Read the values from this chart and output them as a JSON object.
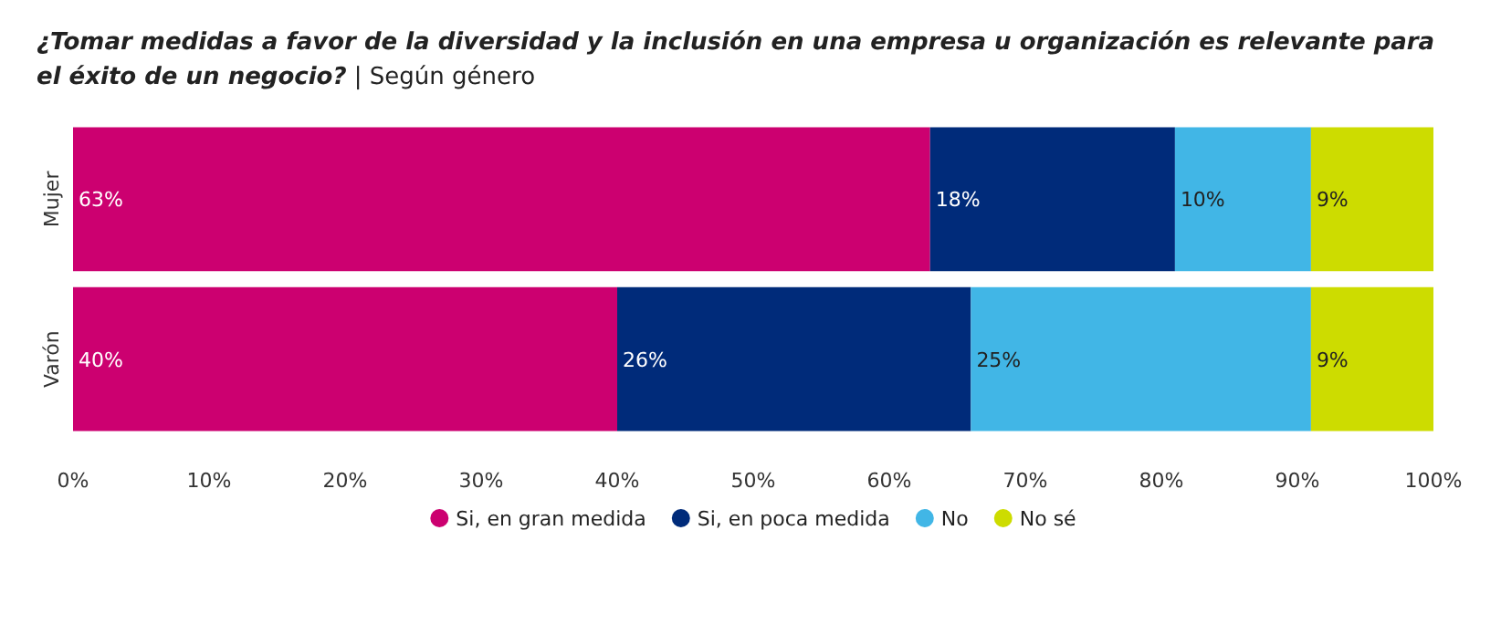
{
  "chart_data": {
    "type": "bar",
    "orientation": "horizontal",
    "stacked": true,
    "title": "¿Tomar medidas a favor de la diversidad y la inclusión en una empresa u organización es relevante para el éxito de un negocio?",
    "subtitle": "| Según género",
    "categories": [
      "Mujer",
      "Varón"
    ],
    "series": [
      {
        "name": "Si, en gran medida",
        "color": "#cc0070",
        "values": [
          63,
          40
        ]
      },
      {
        "name": "Si, en poca medida",
        "color": "#002b7a",
        "values": [
          18,
          26
        ]
      },
      {
        "name": "No",
        "color": "#41b6e6",
        "values": [
          10,
          25
        ]
      },
      {
        "name": "No sé",
        "color": "#cddc00",
        "values": [
          9,
          9
        ]
      }
    ],
    "xlim": [
      0,
      100
    ],
    "xticks": [
      {
        "value": 0,
        "label": "0%"
      },
      {
        "value": 10,
        "label": "10%"
      },
      {
        "value": 20,
        "label": "20%"
      },
      {
        "value": 30,
        "label": "30%"
      },
      {
        "value": 40,
        "label": "40%"
      },
      {
        "value": 50,
        "label": "50%"
      },
      {
        "value": 60,
        "label": "60%"
      },
      {
        "value": 70,
        "label": "70%"
      },
      {
        "value": 80,
        "label": "80%"
      },
      {
        "value": 90,
        "label": "90%"
      },
      {
        "value": 100,
        "label": "100%"
      }
    ],
    "value_labels": [
      [
        "63%",
        "40%"
      ],
      [
        "18%",
        "26%"
      ],
      [
        "10%",
        "25%"
      ],
      [
        "9%",
        "9%"
      ]
    ],
    "legend": "bottom"
  }
}
